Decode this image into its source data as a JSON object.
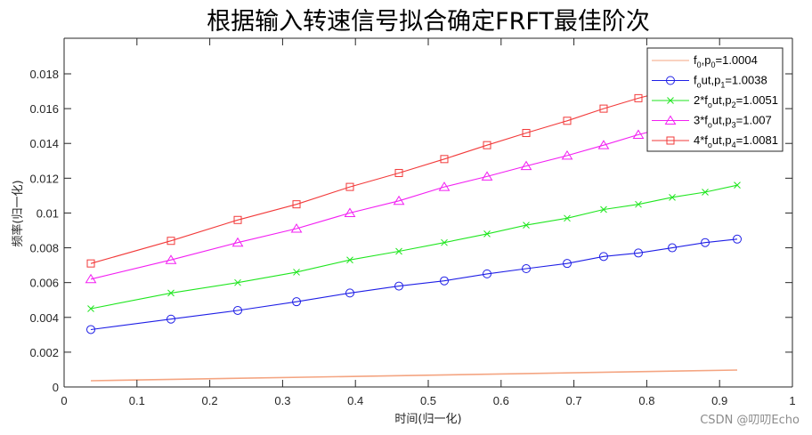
{
  "chart_data": {
    "type": "line",
    "title": "根据输入转速信号拟合确定FRFT最佳阶次",
    "xlabel": "时间(归一化)",
    "ylabel": "频率(归一化)",
    "xlim": [
      0,
      1
    ],
    "ylim": [
      0,
      0.02
    ],
    "xticks": [
      "0",
      "0.1",
      "0.2",
      "0.3",
      "0.4",
      "0.5",
      "0.6",
      "0.7",
      "0.8",
      "0.9",
      "1"
    ],
    "xtick_values": [
      0,
      0.1,
      0.2,
      0.3,
      0.4,
      0.5,
      0.6,
      0.7,
      0.8,
      0.9,
      1
    ],
    "yticks": [
      "0",
      "0.002",
      "0.004",
      "0.006",
      "0.008",
      "0.01",
      "0.012",
      "0.014",
      "0.016",
      "0.018"
    ],
    "ytick_values": [
      0,
      0.002,
      0.004,
      0.006,
      0.008,
      0.01,
      0.012,
      0.014,
      0.016,
      0.018
    ],
    "grid": false,
    "legend_position": "northeast",
    "x": [
      0.0367,
      0.1467,
      0.2384,
      0.3191,
      0.3924,
      0.4597,
      0.522,
      0.5807,
      0.6345,
      0.6907,
      0.7408,
      0.7885,
      0.835,
      0.8802,
      0.9242
    ],
    "series": [
      {
        "name": "f_0,p_0=1.0004",
        "legend_main": "f",
        "legend_parts": [
          [
            "f",
            ""
          ],
          [
            "0",
            "sub"
          ],
          [
            ",p",
            ""
          ],
          [
            "0",
            "sub"
          ],
          [
            "=1.0004",
            ""
          ]
        ],
        "color": "#f4a582",
        "marker": "none",
        "x": [
          0.0367,
          0.9242
        ],
        "values": [
          0.00036,
          0.00097
        ]
      },
      {
        "name": "f_out,p_1=1.0038",
        "legend_parts": [
          [
            "f",
            ""
          ],
          [
            "o",
            "sub"
          ],
          [
            "ut,p",
            ""
          ],
          [
            "1",
            "sub"
          ],
          [
            "=1.0038",
            ""
          ]
        ],
        "color": "#1f1fe6",
        "marker": "circle",
        "values": [
          0.0033,
          0.0039,
          0.0044,
          0.0049,
          0.0054,
          0.0058,
          0.0061,
          0.0065,
          0.0068,
          0.0071,
          0.0075,
          0.0077,
          0.008,
          0.0083,
          0.0085
        ]
      },
      {
        "name": "2*f_out,p_2=1.0051",
        "legend_parts": [
          [
            "2*f",
            ""
          ],
          [
            "o",
            "sub"
          ],
          [
            "ut,p",
            ""
          ],
          [
            "2",
            "sub"
          ],
          [
            "=1.0051",
            ""
          ]
        ],
        "color": "#1fe61f",
        "marker": "x",
        "values": [
          0.0045,
          0.0054,
          0.006,
          0.0066,
          0.0073,
          0.0078,
          0.0083,
          0.0088,
          0.0093,
          0.0097,
          0.0102,
          0.0105,
          0.0109,
          0.0112,
          0.0116
        ]
      },
      {
        "name": "3*f_out,p_3=1.007",
        "legend_parts": [
          [
            "3*f",
            ""
          ],
          [
            "o",
            "sub"
          ],
          [
            "ut,p",
            ""
          ],
          [
            "3",
            "sub"
          ],
          [
            "=1.007",
            ""
          ]
        ],
        "color": "#f21ff2",
        "marker": "triangle",
        "values": [
          0.0062,
          0.0073,
          0.0083,
          0.0091,
          0.01,
          0.0107,
          0.0115,
          0.0121,
          0.0127,
          0.0133,
          0.0139,
          0.0145,
          0.015,
          0.0155,
          0.016
        ]
      },
      {
        "name": "4*f_out,p_4=1.0081",
        "legend_parts": [
          [
            "4*f",
            ""
          ],
          [
            "o",
            "sub"
          ],
          [
            "ut,p",
            ""
          ],
          [
            "4",
            "sub"
          ],
          [
            "=1.0081",
            ""
          ]
        ],
        "color": "#f23a3a",
        "marker": "square",
        "values": [
          0.0071,
          0.0084,
          0.0096,
          0.0105,
          0.0115,
          0.0123,
          0.0131,
          0.0139,
          0.0146,
          0.0153,
          0.016,
          0.0166,
          0.0171,
          0.0176,
          0.0181
        ]
      }
    ]
  },
  "watermark": "CSDN @叨叨Echo"
}
